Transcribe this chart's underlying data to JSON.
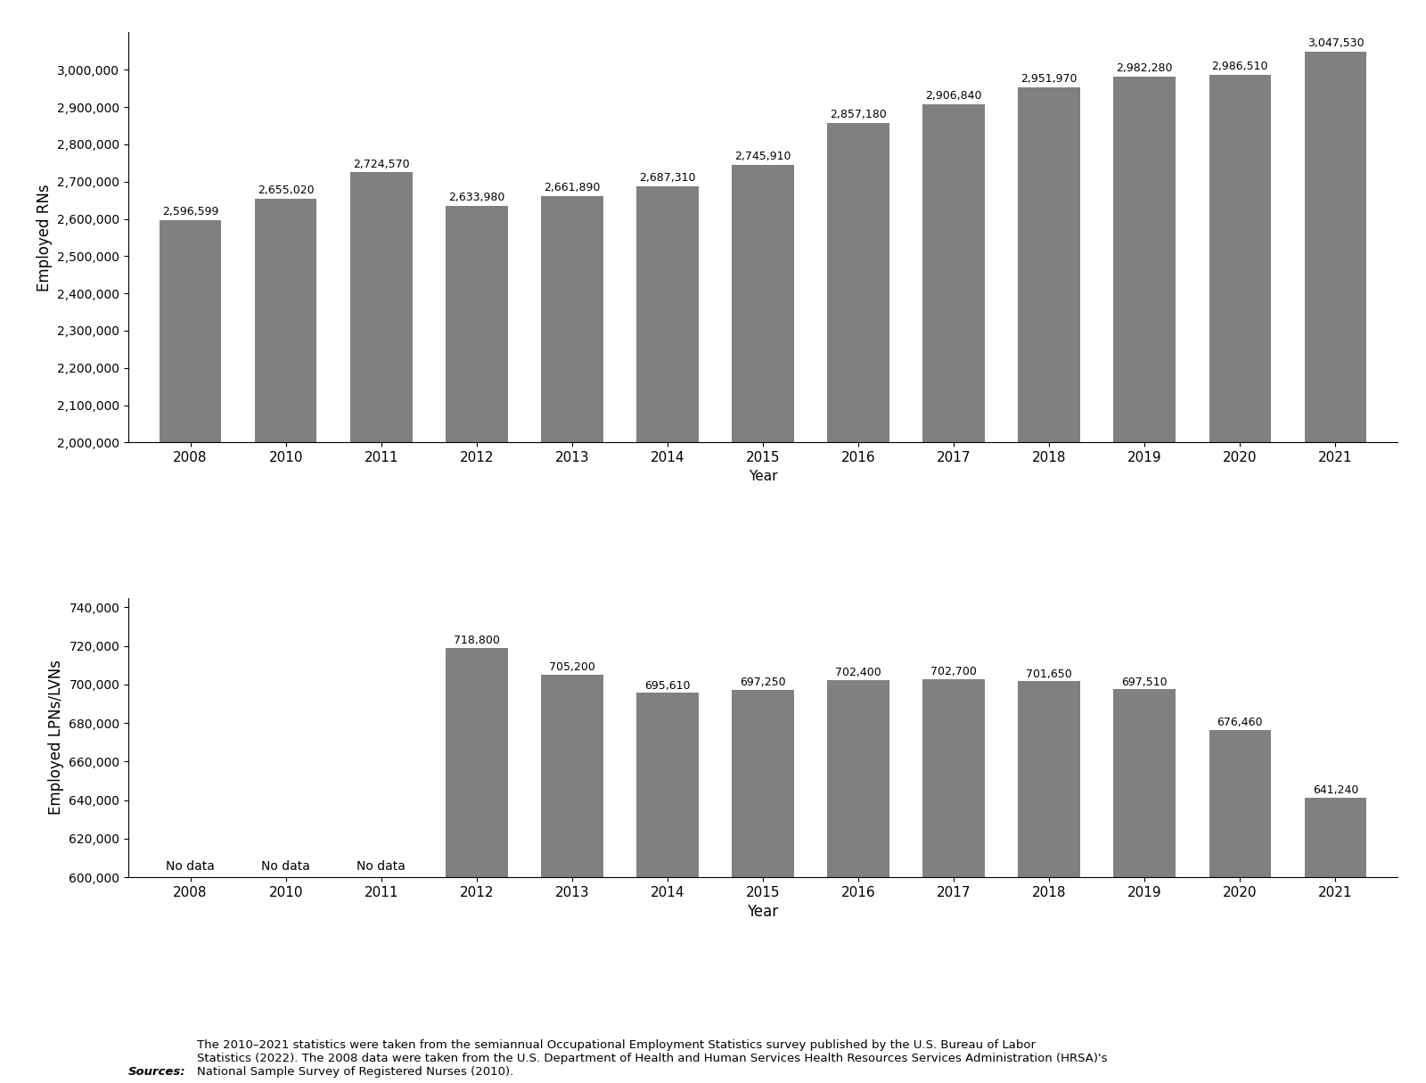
{
  "rn_years": [
    "2008",
    "2010",
    "2011",
    "2012",
    "2013",
    "2014",
    "2015",
    "2016",
    "2017",
    "2018",
    "2019",
    "2020",
    "2021"
  ],
  "rn_values": [
    2596599,
    2655020,
    2724570,
    2633980,
    2661890,
    2687310,
    2745910,
    2857180,
    2906840,
    2951970,
    2982280,
    2986510,
    3047530
  ],
  "lpn_years": [
    "2008",
    "2010",
    "2011",
    "2012",
    "2013",
    "2014",
    "2015",
    "2016",
    "2017",
    "2018",
    "2019",
    "2020",
    "2021"
  ],
  "lpn_values": [
    null,
    null,
    null,
    718800,
    705200,
    695610,
    697250,
    702400,
    702700,
    701650,
    697510,
    676460,
    641240
  ],
  "lpn_no_data_indices": [
    0,
    1,
    2
  ],
  "bar_color": "#808080",
  "rn_ylabel": "Employed RNs",
  "lpn_ylabel": "Employed LPNs/LVNs",
  "xlabel": "Year",
  "rn_ylim": [
    2000000,
    3100000
  ],
  "rn_yticks": [
    2000000,
    2100000,
    2200000,
    2300000,
    2400000,
    2500000,
    2600000,
    2700000,
    2800000,
    2900000,
    3000000
  ],
  "lpn_ylim": [
    600000,
    745000
  ],
  "lpn_yticks": [
    600000,
    620000,
    640000,
    660000,
    680000,
    700000,
    720000,
    740000
  ],
  "source_bold": "Sources:",
  "source_normal": "The 2010–2021 statistics were taken from the semiannual Occupational Employment Statistics survey published by the U.S. Bureau of Labor\nStatistics (2022). The 2008 data were taken from the U.S. Department of Health and Human Services Health Resources Services Administration (HRSA)'s\nNational Sample Survey of Registered Nurses (2010).",
  "bar_width": 0.65,
  "label_fontsize": 9,
  "tick_fontsize": 11,
  "ylabel_fontsize": 12
}
